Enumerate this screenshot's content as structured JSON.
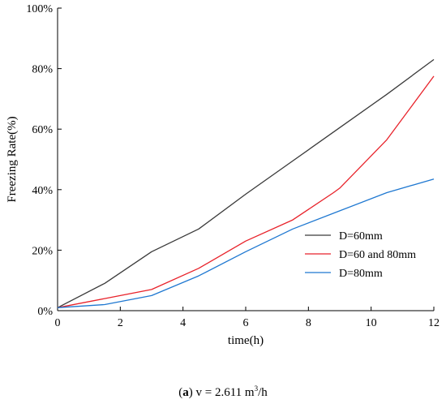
{
  "chart_data": {
    "type": "line",
    "title": "",
    "xlabel": "time(h)",
    "ylabel": "Freezing Rate(%)",
    "xlim": [
      0,
      12
    ],
    "ylim": [
      0,
      100
    ],
    "xticks": [
      0,
      2,
      4,
      6,
      8,
      10,
      12
    ],
    "xtick_labels": [
      "0",
      "2",
      "4",
      "6",
      "8",
      "10",
      "12"
    ],
    "yticks": [
      0,
      20,
      40,
      60,
      80,
      100
    ],
    "ytick_labels": [
      "0%",
      "20%",
      "40%",
      "60%",
      "80%",
      "100%"
    ],
    "grid": false,
    "legend_position": "bottom-right",
    "series": [
      {
        "name": "D=60mm",
        "color": "#3a3a3a",
        "x": [
          0,
          1.5,
          3,
          4.5,
          6,
          7.5,
          9,
          10.5,
          12
        ],
        "y": [
          1,
          9,
          19.5,
          27,
          38.5,
          49.5,
          60.5,
          71.5,
          83
        ]
      },
      {
        "name": "D=60 and 80mm",
        "color": "#e8222a",
        "x": [
          0,
          1.5,
          3,
          4.5,
          6,
          7.5,
          8.8,
          9,
          10.5,
          12
        ],
        "y": [
          1,
          4,
          7,
          14,
          23,
          30,
          39,
          40.5,
          56.5,
          77.5
        ]
      },
      {
        "name": "D=80mm",
        "color": "#1f78d1",
        "x": [
          0,
          1.5,
          3,
          4.5,
          6,
          7.5,
          9,
          10.5,
          12
        ],
        "y": [
          1,
          2,
          5,
          11.5,
          19.5,
          27,
          33,
          39,
          43.5
        ]
      }
    ]
  },
  "caption": {
    "label": "a",
    "text_before": "v = 2.611 m",
    "superscript": "3",
    "text_after": "/h"
  }
}
